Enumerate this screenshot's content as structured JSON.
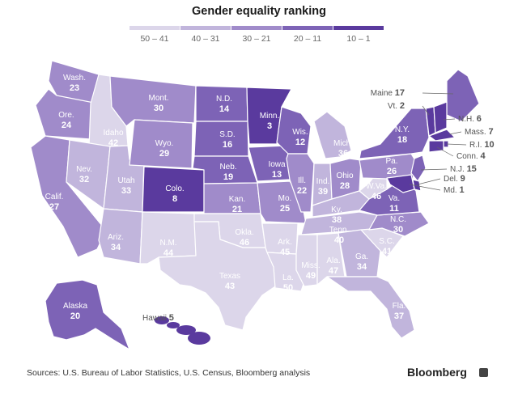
{
  "title": "Gender equality ranking",
  "legend": [
    {
      "label": "50 – 41",
      "color": "#dcd6ea"
    },
    {
      "label": "40 – 31",
      "color": "#c1b5dc"
    },
    {
      "label": "30 – 21",
      "color": "#a08bca"
    },
    {
      "label": "20 – 11",
      "color": "#7d63b6"
    },
    {
      "label": "10 – 1",
      "color": "#5a3a9e"
    }
  ],
  "chart_data": {
    "type": "choropleth",
    "measure": "Gender equality ranking",
    "states": [
      {
        "name": "Wash.",
        "rank": 23
      },
      {
        "name": "Ore.",
        "rank": 24
      },
      {
        "name": "Calif.",
        "rank": 27
      },
      {
        "name": "Idaho",
        "rank": 42
      },
      {
        "name": "Nev.",
        "rank": 32
      },
      {
        "name": "Utah",
        "rank": 33
      },
      {
        "name": "Ariz.",
        "rank": 34
      },
      {
        "name": "Mont.",
        "rank": 30
      },
      {
        "name": "Wyo.",
        "rank": 29
      },
      {
        "name": "Colo.",
        "rank": 8
      },
      {
        "name": "N.M.",
        "rank": 44
      },
      {
        "name": "N.D.",
        "rank": 14
      },
      {
        "name": "S.D.",
        "rank": 16
      },
      {
        "name": "Neb.",
        "rank": 19
      },
      {
        "name": "Kan.",
        "rank": 21
      },
      {
        "name": "Okla.",
        "rank": 46
      },
      {
        "name": "Texas",
        "rank": 43
      },
      {
        "name": "Minn.",
        "rank": 3
      },
      {
        "name": "Iowa",
        "rank": 13
      },
      {
        "name": "Mo.",
        "rank": 25
      },
      {
        "name": "Ark.",
        "rank": 45
      },
      {
        "name": "La.",
        "rank": 50
      },
      {
        "name": "Wis.",
        "rank": 12
      },
      {
        "name": "Ill.",
        "rank": 22
      },
      {
        "name": "Mich.",
        "rank": 36
      },
      {
        "name": "Ind.",
        "rank": 39
      },
      {
        "name": "Ohio",
        "rank": 28
      },
      {
        "name": "Ky.",
        "rank": 38
      },
      {
        "name": "Tenn.",
        "rank": 40
      },
      {
        "name": "Miss.",
        "rank": 49
      },
      {
        "name": "Ala.",
        "rank": 47
      },
      {
        "name": "Ga.",
        "rank": 34
      },
      {
        "name": "Fla.",
        "rank": 37
      },
      {
        "name": "S.C.",
        "rank": 41
      },
      {
        "name": "N.C.",
        "rank": 30
      },
      {
        "name": "Va.",
        "rank": 11
      },
      {
        "name": "W.Va.",
        "rank": 46
      },
      {
        "name": "Pa.",
        "rank": 26
      },
      {
        "name": "N.Y.",
        "rank": 18
      },
      {
        "name": "Alaska",
        "rank": 20
      },
      {
        "name": "Hawaii",
        "rank": 5
      },
      {
        "name": "Maine",
        "rank": 17
      },
      {
        "name": "Vt.",
        "rank": 2
      },
      {
        "name": "N.H.",
        "rank": 6
      },
      {
        "name": "Mass.",
        "rank": 7
      },
      {
        "name": "R.I.",
        "rank": 10
      },
      {
        "name": "Conn.",
        "rank": 4
      },
      {
        "name": "N.J.",
        "rank": 15
      },
      {
        "name": "Del.",
        "rank": 9
      },
      {
        "name": "Md.",
        "rank": 1
      }
    ]
  },
  "source": "Sources: U.S. Bureau of Labor Statistics, U.S. Census, Bloomberg analysis",
  "brand": "Bloomberg"
}
